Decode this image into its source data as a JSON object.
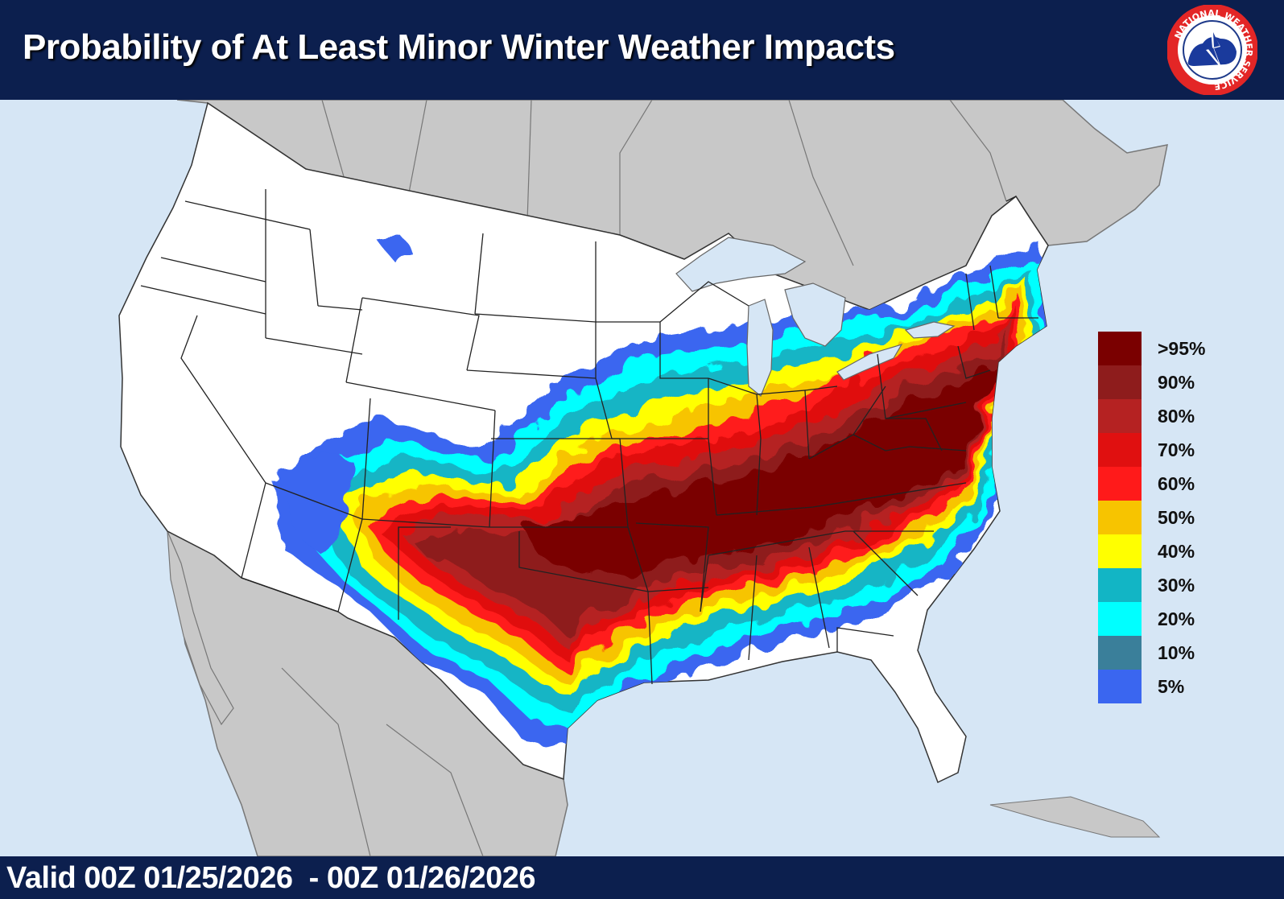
{
  "header": {
    "title": "Probability of At Least Minor Winter Weather Impacts"
  },
  "logo": {
    "icon": "nws-logo-icon",
    "text": "NATIONAL WEATHER SERVICE"
  },
  "footer": {
    "valid_text": "Valid 00Z 01/25/2026  - 00Z 01/26/2026"
  },
  "legend": {
    "items": [
      {
        "label": ">95%",
        "color": "#7a0000"
      },
      {
        "label": "90%",
        "color": "#8e1c1c"
      },
      {
        "label": "80%",
        "color": "#b52222"
      },
      {
        "label": "70%",
        "color": "#e01010"
      },
      {
        "label": "60%",
        "color": "#ff1a1a"
      },
      {
        "label": "50%",
        "color": "#f7c400"
      },
      {
        "label": "40%",
        "color": "#ffff00"
      },
      {
        "label": "30%",
        "color": "#12b5c5"
      },
      {
        "label": "20%",
        "color": "#00ffff"
      },
      {
        "label": "10%",
        "color": "#3a7f9a"
      },
      {
        "label": "5%",
        "color": "#3a66f0"
      }
    ]
  },
  "colors": {
    "ocean": "#d6e6f5",
    "foreign_land": "#c8c8c8",
    "us_land": "#ffffff",
    "header_bg": "#0c1f4e"
  }
}
